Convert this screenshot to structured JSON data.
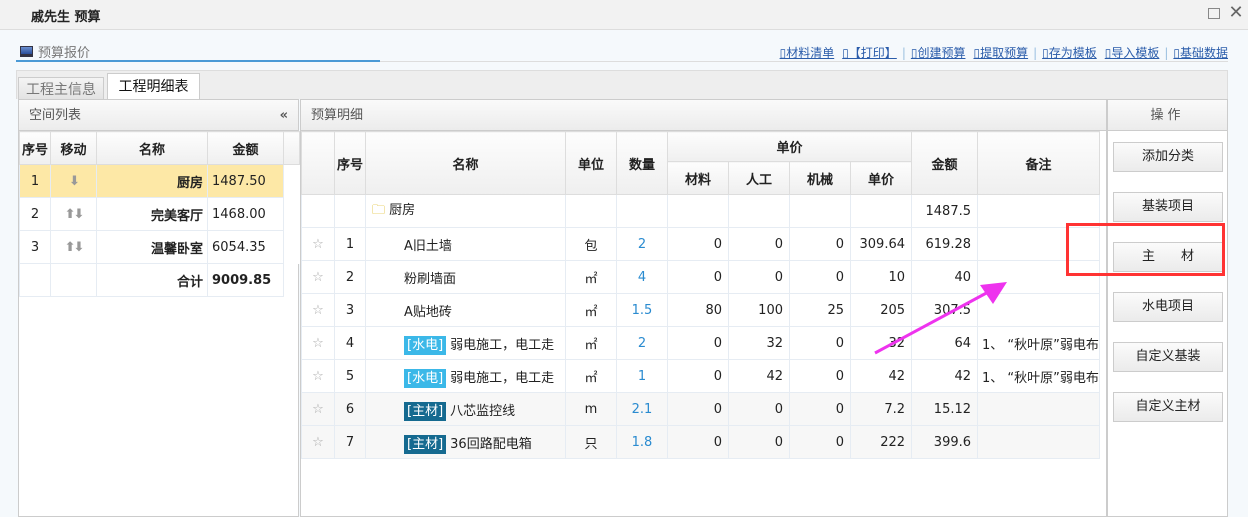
{
  "window": {
    "title": "戚先生 预算"
  },
  "header": {
    "title": "预算报价",
    "links": [
      "材料清单",
      "【打印】",
      "创建预算",
      "提取预算",
      "存为模板",
      "导入模板",
      "基础数据"
    ]
  },
  "tabs": [
    "工程主信息",
    "工程明细表"
  ],
  "left": {
    "title": "空间列表",
    "collapse": "«",
    "columns": [
      "序号",
      "移动",
      "名称",
      "金额"
    ],
    "rows": [
      {
        "no": "1",
        "move": "⬇",
        "name": "厨房",
        "amount": "1487.50"
      },
      {
        "no": "2",
        "move": "⬆⬇",
        "name": "完美客厅",
        "amount": "1468.00"
      },
      {
        "no": "3",
        "move": "⬆⬇",
        "name": "温馨卧室",
        "amount": "6054.35"
      }
    ],
    "total_label": "合计",
    "total": "9009.85"
  },
  "mid": {
    "title": "预算明细",
    "columns": {
      "no": "序号",
      "name": "名称",
      "unit": "单位",
      "qty": "数量",
      "price": "单价",
      "material": "材料",
      "labor": "人工",
      "machine": "机械",
      "unit_price": "单价",
      "amount": "金额",
      "remark": "备注"
    },
    "group": {
      "name": "厨房",
      "amount": "1487.5"
    },
    "rows": [
      {
        "no": "1",
        "tag": "",
        "name": "A旧土墙",
        "unit": "包",
        "qty": "2",
        "material": "0",
        "labor": "0",
        "machine": "0",
        "price": "309.64",
        "amount": "619.28",
        "remark": ""
      },
      {
        "no": "2",
        "tag": "",
        "name": "粉刷墙面",
        "unit": "㎡",
        "qty": "4",
        "material": "0",
        "labor": "0",
        "machine": "0",
        "price": "10",
        "amount": "40",
        "remark": ""
      },
      {
        "no": "3",
        "tag": "",
        "name": "A贴地砖",
        "unit": "㎡",
        "qty": "1.5",
        "material": "80",
        "labor": "100",
        "machine": "25",
        "price": "205",
        "amount": "307.5",
        "remark": ""
      },
      {
        "no": "4",
        "tag": "[水电]",
        "tagtype": "w",
        "name": "弱电施工，电工走",
        "unit": "㎡",
        "qty": "2",
        "material": "0",
        "labor": "32",
        "machine": "0",
        "price": "32",
        "amount": "64",
        "remark": "1、 “秋叶原”弱电布"
      },
      {
        "no": "5",
        "tag": "[水电]",
        "tagtype": "w",
        "name": "弱电施工，电工走",
        "unit": "㎡",
        "qty": "1",
        "material": "0",
        "labor": "42",
        "machine": "0",
        "price": "42",
        "amount": "42",
        "remark": "1、 “秋叶原”弱电布"
      },
      {
        "no": "6",
        "tag": "[主材]",
        "tagtype": "m",
        "name": "八芯监控线",
        "unit": "m",
        "qty": "2.1",
        "material": "0",
        "labor": "0",
        "machine": "0",
        "price": "7.2",
        "amount": "15.12",
        "remark": ""
      },
      {
        "no": "7",
        "tag": "[主材]",
        "tagtype": "m",
        "name": "36回路配电箱",
        "unit": "只",
        "qty": "1.8",
        "material": "0",
        "labor": "0",
        "machine": "0",
        "price": "222",
        "amount": "399.6",
        "remark": ""
      }
    ]
  },
  "right": {
    "title": "操作",
    "buttons": [
      "添加分类",
      "基装项目",
      "主　　材",
      "水电项目",
      "自定义基装",
      "自定义主材"
    ]
  },
  "colors": {
    "accent": "#4a9ad6",
    "selected_row": "#fde8a6",
    "tag_water": "#3bb8e8",
    "tag_main": "#156a90",
    "highlight_box": "#ff3333",
    "annotation_arrow": "#ee33ee"
  }
}
